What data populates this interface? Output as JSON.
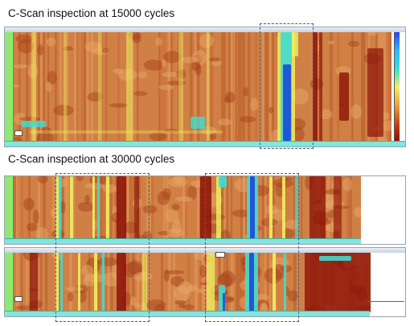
{
  "titles": {
    "t15000": "C-Scan inspection at 15000 cycles",
    "t30000": "C-Scan inspection at 30000 cycles"
  },
  "colors": {
    "scan_base": "#d08045",
    "dark_red": "#8c1208",
    "yellow": "#eef060",
    "cyan": "#40dcd0",
    "blue": "#1f4fd8",
    "dashed_box": "#3c5f8a"
  }
}
